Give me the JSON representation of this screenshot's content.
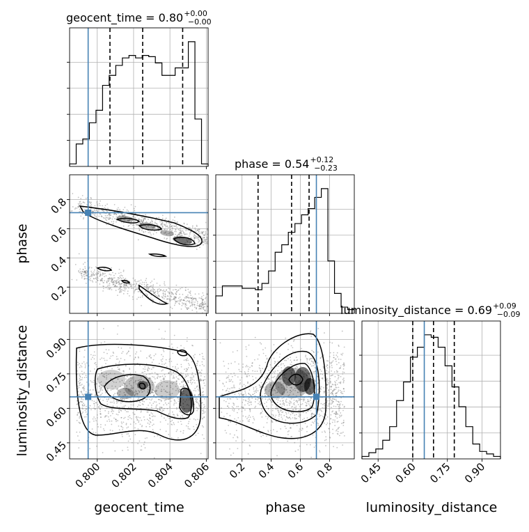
{
  "chart_data": {
    "type": "corner",
    "parameters": [
      "geocent_time",
      "phase",
      "luminosity_distance"
    ],
    "titles": [
      {
        "label": "geocent_time = 0.80",
        "plus": "+0.00",
        "minus": "−0.00"
      },
      {
        "label": "phase = 0.54",
        "plus": "+0.12",
        "minus": "−0.23"
      },
      {
        "label": "luminosity_distance = 0.69",
        "plus": "+0.09",
        "minus": "−0.09"
      }
    ],
    "axis_labels": {
      "x": [
        "geocent_time",
        "phase",
        "luminosity_distance"
      ],
      "y": [
        "phase",
        "luminosity_distance"
      ]
    },
    "ranges": {
      "geocent_time": [
        0.79848,
        0.8061
      ],
      "phase": [
        0.02,
        0.97
      ],
      "luminosity_distance": [
        0.38,
        0.98
      ]
    },
    "ticks": {
      "geocent_time": {
        "values": [
          0.8,
          0.802,
          0.804,
          0.806
        ],
        "labels": [
          "0.800",
          "0.802",
          "0.804",
          "0.806"
        ]
      },
      "phase": {
        "values": [
          0.2,
          0.4,
          0.6,
          0.8
        ],
        "labels": [
          "0.2",
          "0.4",
          "0.6",
          "0.8"
        ]
      },
      "luminosity_distance": {
        "values": [
          0.45,
          0.6,
          0.75,
          0.9
        ],
        "labels": [
          "0.45",
          "0.60",
          "0.75",
          "0.90"
        ]
      }
    },
    "truths": {
      "geocent_time": 0.7995,
      "phase": 0.71,
      "luminosity_distance": 0.65
    },
    "quantiles": {
      "geocent_time": [
        0.8007,
        0.8025,
        0.8047
      ],
      "phase": [
        0.31,
        0.54,
        0.66
      ],
      "luminosity_distance": [
        0.6,
        0.69,
        0.78
      ]
    },
    "histograms": {
      "geocent_time": [
        0.02,
        0.18,
        0.22,
        0.35,
        0.45,
        0.65,
        0.73,
        0.81,
        0.87,
        0.89,
        0.87,
        0.89,
        0.88,
        0.83,
        0.73,
        0.73,
        0.79,
        0.79,
        1.0,
        0.38,
        0.02
      ],
      "phase": [
        0.14,
        0.22,
        0.22,
        0.22,
        0.2,
        0.2,
        0.19,
        0.24,
        0.34,
        0.49,
        0.55,
        0.65,
        0.72,
        0.79,
        0.84,
        0.93,
        1.0,
        0.42,
        0.16,
        0.05,
        0.03
      ],
      "luminosity_distance": [
        0.02,
        0.05,
        0.08,
        0.15,
        0.26,
        0.47,
        0.62,
        0.82,
        0.9,
        1.0,
        0.98,
        0.9,
        0.75,
        0.58,
        0.42,
        0.26,
        0.12,
        0.06,
        0.04,
        0.02
      ]
    },
    "grid": true
  }
}
